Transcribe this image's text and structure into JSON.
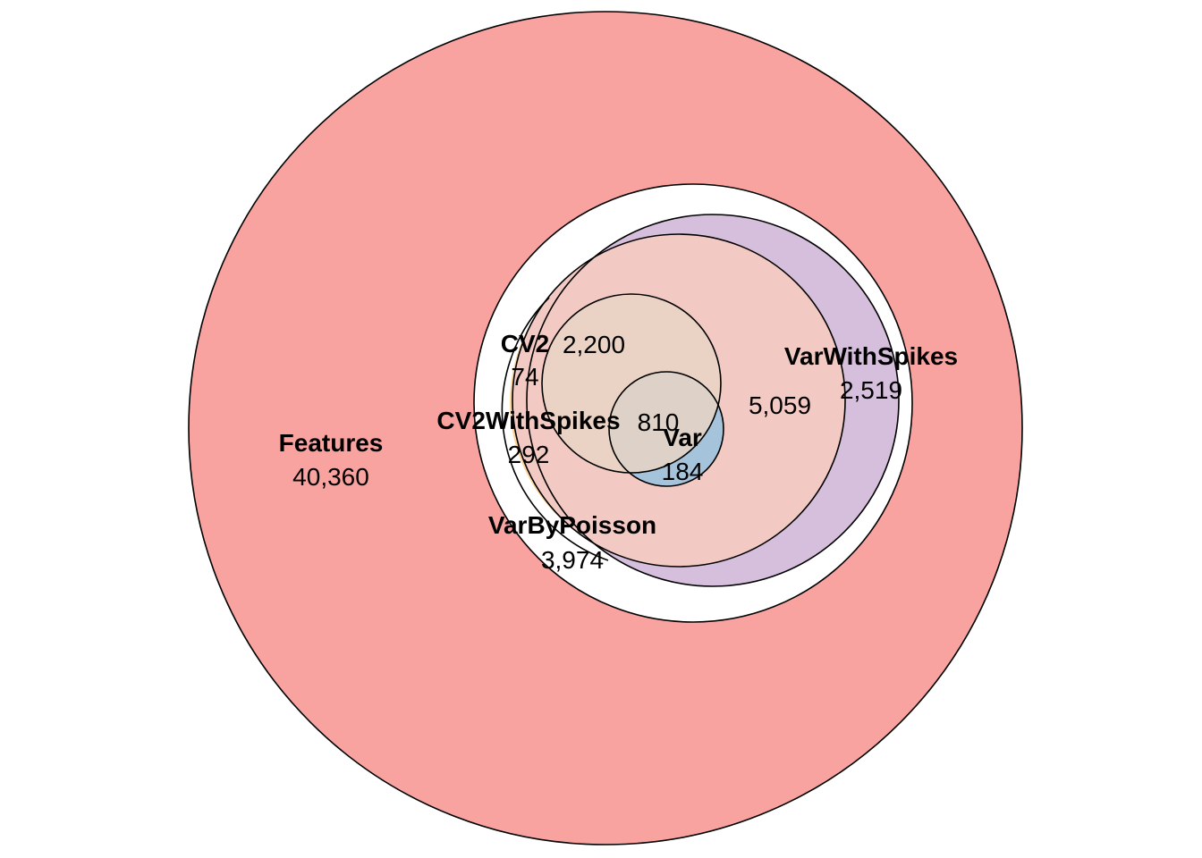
{
  "chart_data": {
    "type": "euler",
    "sets": [
      {
        "id": "features",
        "name": "Features",
        "color": "#f8a39f"
      },
      {
        "id": "varbypoisson",
        "name": "VarByPoisson",
        "color": "#ffffff"
      },
      {
        "id": "cv2withspikes",
        "name": "CV2WithSpikes",
        "color": "#fdd59a"
      },
      {
        "id": "cv2",
        "name": "CV2",
        "color": "#b3dfb1"
      },
      {
        "id": "varwithspikes",
        "name": "VarWithSpikes",
        "color": "#d6bfdd"
      },
      {
        "id": "var",
        "name": "Var",
        "color": "#a6c3dc"
      }
    ],
    "region_counts": {
      "features": "40,360",
      "varbypoisson": "3,974",
      "cv2withspikes": "292",
      "cv2": "74",
      "cv2_intersection": "2,200",
      "core_intersection": "810",
      "var": "184",
      "varwithspikes_intersection": "5,059",
      "varwithspikes": "2,519"
    }
  }
}
